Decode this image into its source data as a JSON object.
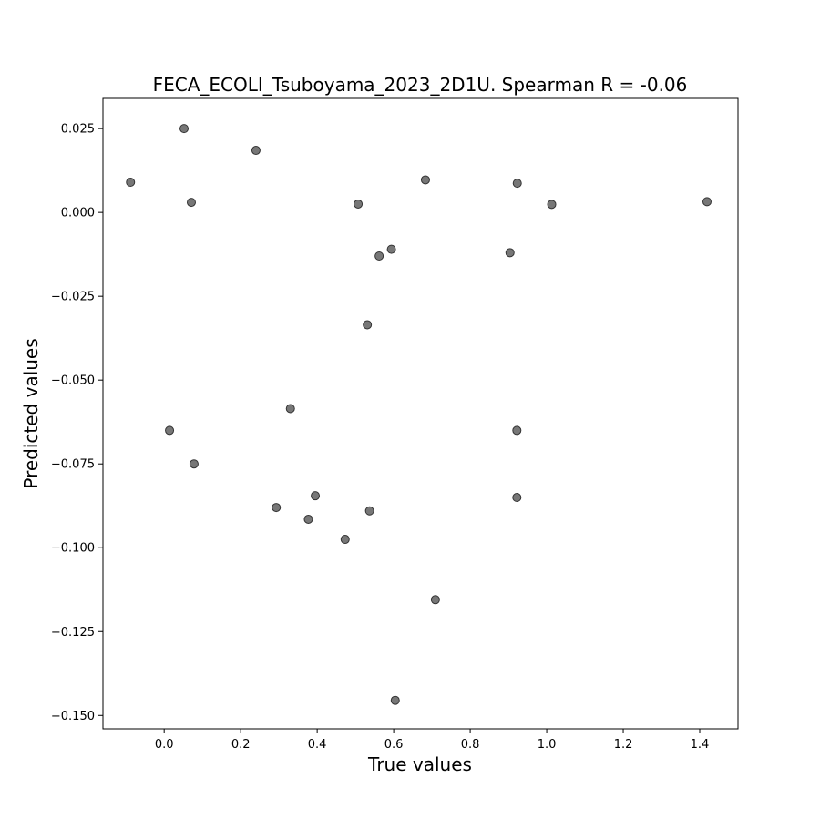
{
  "chart_data": {
    "type": "scatter",
    "title": "FECA_ECOLI_Tsuboyama_2023_2D1U. Spearman R = -0.06",
    "xlabel": "True values",
    "ylabel": "Predicted values",
    "xlim": [
      -0.16,
      1.5
    ],
    "ylim": [
      -0.154,
      0.034
    ],
    "xticks": [
      0.0,
      0.2,
      0.4,
      0.6,
      0.8,
      1.0,
      1.2,
      1.4
    ],
    "xtick_labels": [
      "0.0",
      "0.2",
      "0.4",
      "0.6",
      "0.8",
      "1.0",
      "1.2",
      "1.4"
    ],
    "yticks": [
      0.025,
      0.0,
      -0.025,
      -0.05,
      -0.075,
      -0.1,
      -0.125,
      -0.15
    ],
    "ytick_labels": [
      "0.025",
      "0.000",
      "−0.025",
      "−0.050",
      "−0.075",
      "−0.100",
      "−0.125",
      "−0.150"
    ],
    "grid": false,
    "marker_color": "#555555",
    "points": [
      {
        "x": -0.088,
        "y": 0.009
      },
      {
        "x": 0.052,
        "y": 0.025
      },
      {
        "x": 0.071,
        "y": 0.003
      },
      {
        "x": 0.24,
        "y": 0.0185
      },
      {
        "x": 0.507,
        "y": 0.0025
      },
      {
        "x": 0.683,
        "y": 0.0097
      },
      {
        "x": 0.923,
        "y": 0.0087
      },
      {
        "x": 1.013,
        "y": 0.0024
      },
      {
        "x": 1.419,
        "y": 0.0032
      },
      {
        "x": 0.562,
        "y": -0.013
      },
      {
        "x": 0.594,
        "y": -0.011
      },
      {
        "x": 0.904,
        "y": -0.012
      },
      {
        "x": 0.531,
        "y": -0.0335
      },
      {
        "x": 0.33,
        "y": -0.0585
      },
      {
        "x": 0.014,
        "y": -0.065
      },
      {
        "x": 0.922,
        "y": -0.065
      },
      {
        "x": 0.078,
        "y": -0.075
      },
      {
        "x": 0.293,
        "y": -0.088
      },
      {
        "x": 0.395,
        "y": -0.0845
      },
      {
        "x": 0.377,
        "y": -0.0915
      },
      {
        "x": 0.537,
        "y": -0.089
      },
      {
        "x": 0.922,
        "y": -0.085
      },
      {
        "x": 0.473,
        "y": -0.0975
      },
      {
        "x": 0.709,
        "y": -0.1155
      },
      {
        "x": 0.604,
        "y": -0.1455
      }
    ]
  }
}
